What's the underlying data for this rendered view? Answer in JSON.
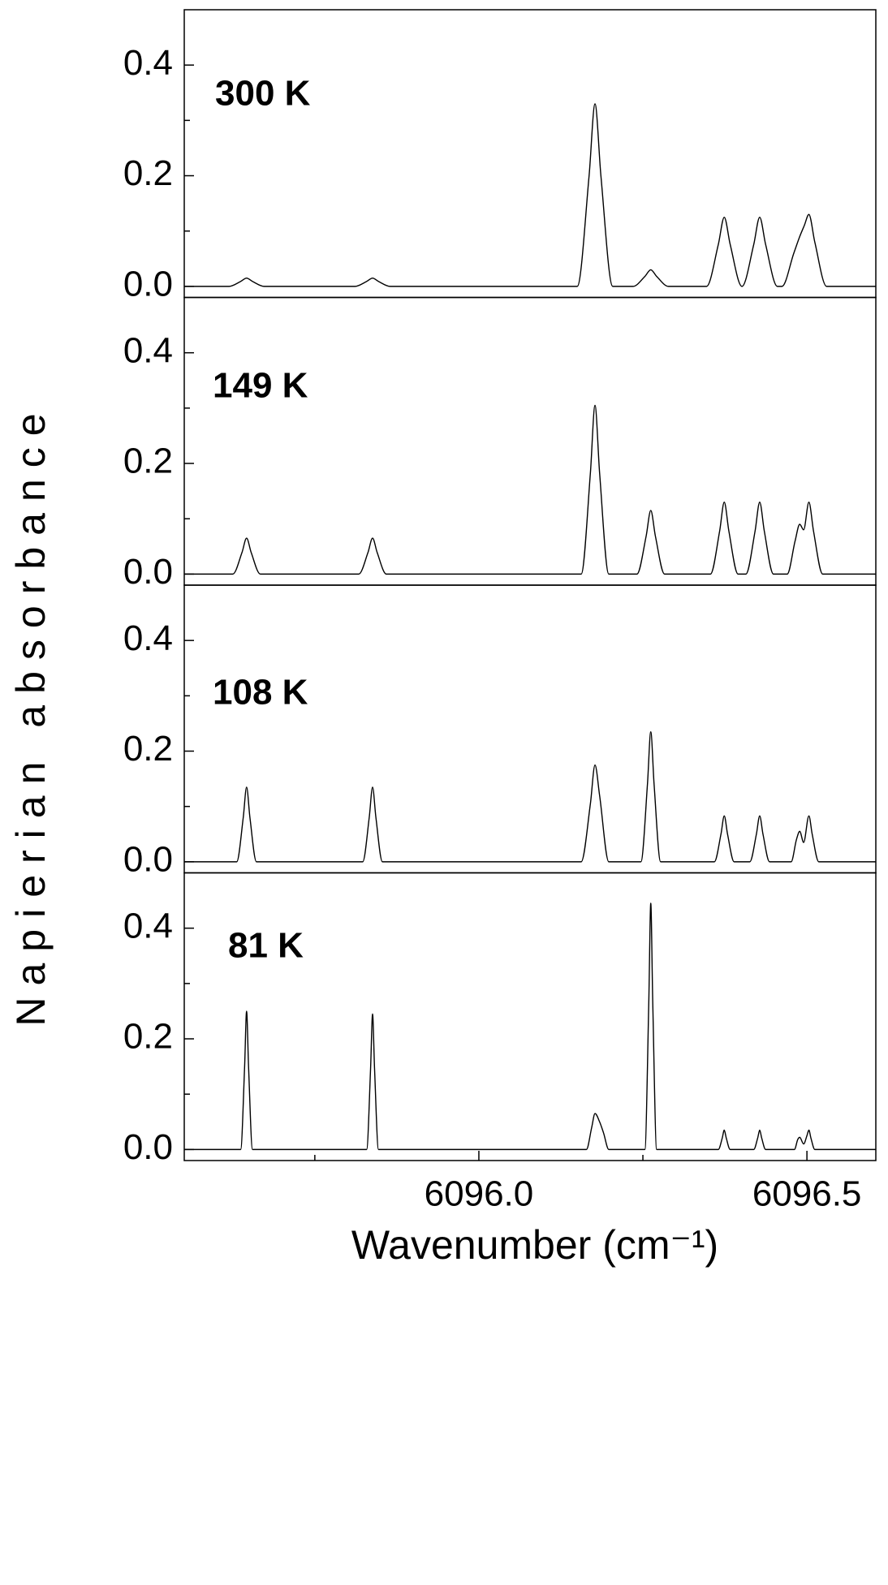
{
  "y_label": "Napierian absorbance",
  "chart_data": [
    {
      "type": "line",
      "annotation": "300 K",
      "x": [
        6095.551,
        6095.619,
        6095.637,
        6095.646,
        6095.655,
        6095.673,
        6095.811,
        6095.829,
        6095.838,
        6095.847,
        6095.865,
        6096.15,
        6096.168,
        6096.177,
        6096.186,
        6096.204,
        6096.235,
        6096.253,
        6096.262,
        6096.271,
        6096.289,
        6096.347,
        6096.365,
        6096.374,
        6096.383,
        6096.401,
        6096.419,
        6096.428,
        6096.437,
        6096.455,
        6096.462,
        6096.48,
        6096.489,
        6096.496,
        6096.503,
        6096.512,
        6096.53,
        6096.605
      ],
      "series": [
        {
          "color": "#000000",
          "values": [
            0,
            0,
            0.009,
            0.015,
            0.009,
            0,
            0,
            0.009,
            0.015,
            0.009,
            0,
            0,
            0.2,
            0.33,
            0.2,
            0,
            0,
            0.018,
            0.03,
            0.018,
            0,
            0,
            0.076,
            0.125,
            0.076,
            0,
            0.076,
            0.125,
            0.076,
            0,
            0,
            0.06,
            0.09,
            0.11,
            0.13,
            0.08,
            0,
            0
          ]
        }
      ],
      "xlim": [
        6095.551,
        6096.605
      ],
      "ylim": [
        -0.02,
        0.5
      ],
      "yticks": [
        {
          "value": 0,
          "label": "0.0"
        },
        {
          "value": 0.2,
          "label": "0.2"
        },
        {
          "value": 0.4,
          "label": "0.4"
        }
      ],
      "yminor_ticks": [
        0.1,
        0.3
      ]
    },
    {
      "type": "line",
      "annotation": "149 K",
      "x": [
        6095.551,
        6095.625,
        6095.639,
        6095.646,
        6095.653,
        6095.667,
        6095.817,
        6095.831,
        6095.838,
        6095.845,
        6095.859,
        6096.156,
        6096.17,
        6096.177,
        6096.184,
        6096.198,
        6096.241,
        6096.255,
        6096.262,
        6096.269,
        6096.283,
        6096.353,
        6096.367,
        6096.374,
        6096.381,
        6096.395,
        6096.407,
        6096.421,
        6096.428,
        6096.435,
        6096.449,
        6096.47,
        6096.482,
        6096.489,
        6096.495,
        6096.503,
        6096.51,
        6096.524,
        6096.605
      ],
      "series": [
        {
          "color": "#000000",
          "values": [
            0,
            0,
            0.039,
            0.065,
            0.039,
            0,
            0,
            0.039,
            0.065,
            0.039,
            0,
            0,
            0.183,
            0.305,
            0.183,
            0,
            0,
            0.069,
            0.115,
            0.069,
            0,
            0,
            0.078,
            0.13,
            0.078,
            0,
            0,
            0.078,
            0.13,
            0.078,
            0,
            0,
            0.06,
            0.09,
            0.08,
            0.13,
            0.078,
            0,
            0
          ]
        }
      ],
      "xlim": [
        6095.551,
        6096.605
      ],
      "ylim": [
        -0.02,
        0.5
      ],
      "yticks": [
        {
          "value": 0,
          "label": "0.0"
        },
        {
          "value": 0.2,
          "label": "0.2"
        },
        {
          "value": 0.4,
          "label": "0.4"
        }
      ],
      "yminor_ticks": [
        0.1,
        0.3
      ]
    },
    {
      "type": "line",
      "annotation": "108 K",
      "x": [
        6095.551,
        6095.631,
        6095.641,
        6095.646,
        6095.651,
        6095.661,
        6095.823,
        6095.833,
        6095.838,
        6095.843,
        6095.853,
        6096.156,
        6096.17,
        6096.177,
        6096.184,
        6096.198,
        6096.247,
        6096.257,
        6096.262,
        6096.267,
        6096.277,
        6096.359,
        6096.369,
        6096.374,
        6096.379,
        6096.389,
        6096.413,
        6096.423,
        6096.428,
        6096.433,
        6096.443,
        6096.476,
        6096.484,
        6096.489,
        6096.495,
        6096.503,
        6096.508,
        6096.518,
        6096.605
      ],
      "series": [
        {
          "color": "#000000",
          "values": [
            0,
            0,
            0.081,
            0.135,
            0.081,
            0,
            0,
            0.081,
            0.135,
            0.081,
            0,
            0,
            0.105,
            0.175,
            0.12,
            0,
            0,
            0.141,
            0.235,
            0.141,
            0,
            0,
            0.05,
            0.083,
            0.05,
            0,
            0,
            0.05,
            0.083,
            0.05,
            0,
            0,
            0.04,
            0.055,
            0.035,
            0.083,
            0.05,
            0,
            0
          ]
        }
      ],
      "xlim": [
        6095.551,
        6096.605
      ],
      "ylim": [
        -0.02,
        0.5
      ],
      "yticks": [
        {
          "value": 0,
          "label": "0.0"
        },
        {
          "value": 0.2,
          "label": "0.2"
        },
        {
          "value": 0.4,
          "label": "0.4"
        }
      ],
      "yminor_ticks": [
        0.1,
        0.3
      ]
    },
    {
      "type": "line",
      "annotation": "81 K",
      "x": [
        6095.551,
        6095.637,
        6095.643,
        6095.646,
        6095.649,
        6095.655,
        6095.829,
        6095.835,
        6095.838,
        6095.841,
        6095.847,
        6096.164,
        6096.172,
        6096.177,
        6096.184,
        6096.19,
        6096.198,
        6096.253,
        6096.259,
        6096.262,
        6096.265,
        6096.271,
        6096.365,
        6096.371,
        6096.374,
        6096.377,
        6096.383,
        6096.419,
        6096.425,
        6096.428,
        6096.431,
        6096.437,
        6096.481,
        6096.486,
        6096.489,
        6096.495,
        6096.5,
        6096.503,
        6096.506,
        6096.512,
        6096.605
      ],
      "series": [
        {
          "color": "#000000",
          "values": [
            0,
            0,
            0.15,
            0.25,
            0.15,
            0,
            0,
            0.147,
            0.245,
            0.147,
            0,
            0,
            0.04,
            0.065,
            0.05,
            0.03,
            0,
            0,
            0.267,
            0.445,
            0.267,
            0,
            0,
            0.021,
            0.035,
            0.021,
            0,
            0,
            0.021,
            0.035,
            0.021,
            0,
            0,
            0.018,
            0.022,
            0.01,
            0.025,
            0.035,
            0.021,
            0,
            0
          ]
        }
      ],
      "xlim": [
        6095.551,
        6096.605
      ],
      "ylim": [
        -0.02,
        0.5
      ],
      "yticks": [
        {
          "value": 0,
          "label": "0.0"
        },
        {
          "value": 0.2,
          "label": "0.2"
        },
        {
          "value": 0.4,
          "label": "0.4"
        }
      ],
      "yminor_ticks": [
        0.1,
        0.3
      ],
      "xticks": [
        {
          "value": 6096,
          "label": "6096.0"
        },
        {
          "value": 6096.5,
          "label": "6096.5"
        }
      ],
      "xminor_ticks": [
        6095.75,
        6096.25
      ],
      "x_label": "Wavenumber (cm⁻¹)"
    }
  ]
}
